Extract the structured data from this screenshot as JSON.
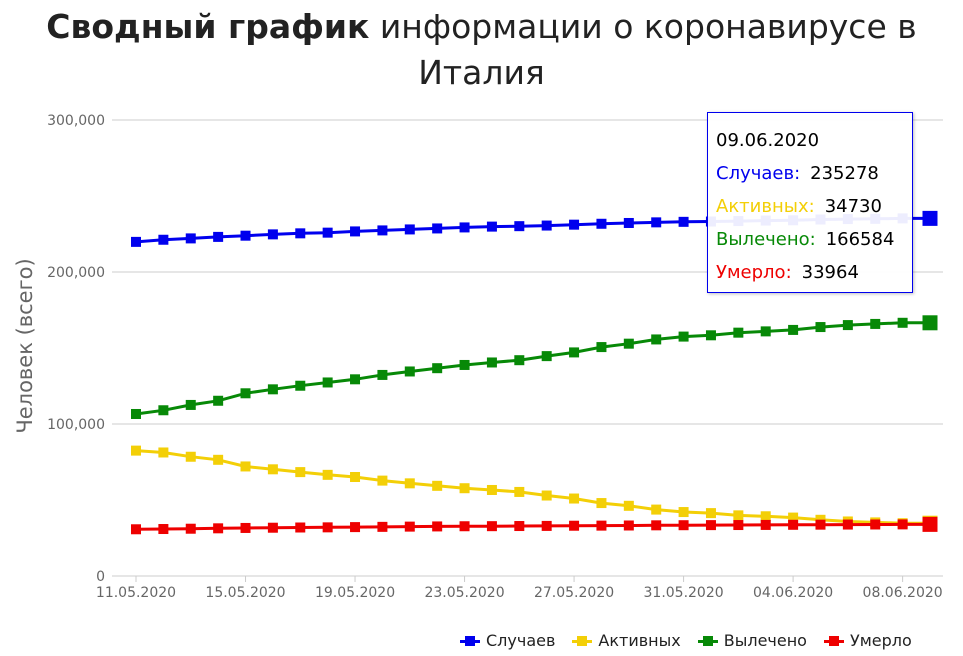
{
  "title": {
    "bold": "Сводный график",
    "rest": "информации о коронавирусе в Италия"
  },
  "colors": {
    "cases": "#0000ee",
    "active": "#f3cf07",
    "recovered": "#078907",
    "deaths": "#ee0000",
    "grid": "#cccccc",
    "axis_text": "#666666"
  },
  "chart_data": {
    "type": "line",
    "ylabel": "Человек (всего)",
    "xlabel": "",
    "ylim": [
      0,
      300000
    ],
    "y_ticks": [
      "0",
      "100,000",
      "200,000",
      "300,000"
    ],
    "x_ticks": [
      "11.05.2020",
      "15.05.2020",
      "19.05.2020",
      "23.05.2020",
      "27.05.2020",
      "31.05.2020",
      "04.06.2020",
      "08.06.2020"
    ],
    "grid": true,
    "legend_position": "bottom-right",
    "x": [
      "11.05.2020",
      "12.05.2020",
      "13.05.2020",
      "14.05.2020",
      "15.05.2020",
      "16.05.2020",
      "17.05.2020",
      "18.05.2020",
      "19.05.2020",
      "20.05.2020",
      "21.05.2020",
      "22.05.2020",
      "23.05.2020",
      "24.05.2020",
      "25.05.2020",
      "26.05.2020",
      "27.05.2020",
      "28.05.2020",
      "29.05.2020",
      "30.05.2020",
      "31.05.2020",
      "01.06.2020",
      "02.06.2020",
      "03.06.2020",
      "04.06.2020",
      "05.06.2020",
      "06.06.2020",
      "07.06.2020",
      "08.06.2020",
      "09.06.2020"
    ],
    "series": [
      {
        "name": "Случаев",
        "key": "cases",
        "values": [
          219814,
          221216,
          222104,
          223096,
          223885,
          224760,
          225435,
          225886,
          226699,
          227364,
          228006,
          228658,
          229327,
          229858,
          230158,
          230555,
          231139,
          231732,
          232248,
          232664,
          232997,
          233197,
          233515,
          233836,
          234013,
          234531,
          234801,
          234998,
          235278,
          235278
        ]
      },
      {
        "name": "Активных",
        "key": "active",
        "values": [
          82488,
          81266,
          78457,
          76440,
          72070,
          70187,
          68351,
          66553,
          65129,
          62752,
          60960,
          59322,
          57752,
          56594,
          55300,
          52942,
          50966,
          47986,
          46175,
          43691,
          42075,
          41367,
          39893,
          39297,
          38429,
          36976,
          35877,
          35262,
          34730,
          34730
        ]
      },
      {
        "name": "Вылечено",
        "key": "recovered",
        "values": [
          106587,
          109039,
          112541,
          115288,
          120205,
          122810,
          125176,
          127326,
          129401,
          132282,
          134560,
          136720,
          138840,
          140479,
          141981,
          144658,
          147101,
          150604,
          152844,
          155633,
          157507,
          158355,
          160092,
          160938,
          161895,
          163781,
          165078,
          165837,
          166584,
          166584
        ]
      },
      {
        "name": "Умерло",
        "key": "deaths",
        "values": [
          30739,
          30911,
          31106,
          31368,
          31610,
          31763,
          31908,
          32007,
          32169,
          32330,
          32486,
          32616,
          32735,
          32785,
          32877,
          32955,
          33072,
          33142,
          33229,
          33340,
          33415,
          33475,
          33530,
          33601,
          33689,
          33774,
          33846,
          33899,
          33964,
          33964
        ]
      }
    ]
  },
  "tooltip": {
    "date": "09.06.2020",
    "rows": [
      {
        "label": "Случаев:",
        "value": "235278",
        "key": "cases"
      },
      {
        "label": "Активных:",
        "value": "34730",
        "key": "active"
      },
      {
        "label": "Вылечено:",
        "value": "166584",
        "key": "recovered"
      },
      {
        "label": "Умерло:",
        "value": "33964",
        "key": "deaths"
      }
    ]
  },
  "legend": [
    {
      "label": "Случаев",
      "key": "cases"
    },
    {
      "label": "Активных",
      "key": "active"
    },
    {
      "label": "Вылечено",
      "key": "recovered"
    },
    {
      "label": "Умерло",
      "key": "deaths"
    }
  ]
}
